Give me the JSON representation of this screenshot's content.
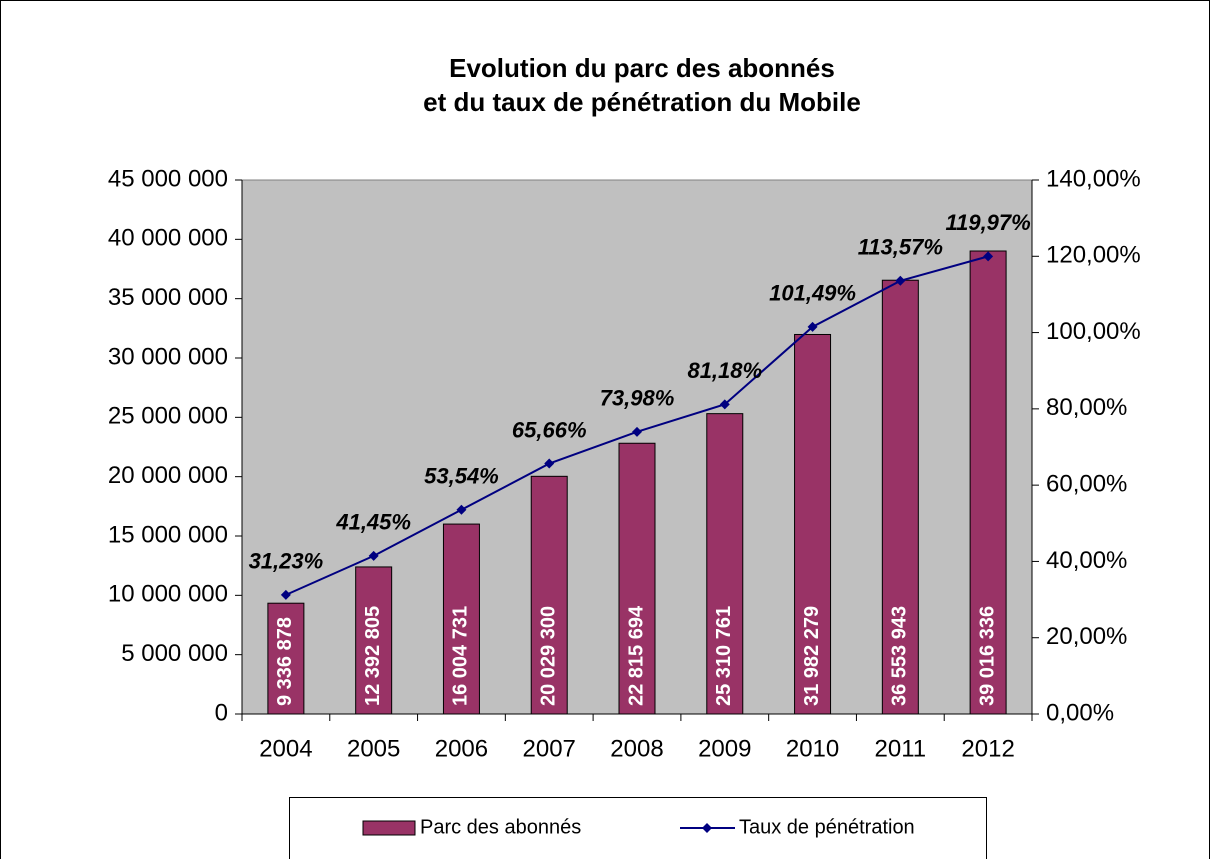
{
  "chart_data": {
    "type": "combo",
    "title": [
      "Evolution du parc des abonnés",
      "et du taux de pénétration du Mobile"
    ],
    "categories": [
      "2004",
      "2005",
      "2006",
      "2007",
      "2008",
      "2009",
      "2010",
      "2011",
      "2012"
    ],
    "series": [
      {
        "name": "Parc des abonnés",
        "type": "bar",
        "color": "#993366",
        "values": [
          9336878,
          12392805,
          16004731,
          20029300,
          22815694,
          25310761,
          31982279,
          36553943,
          39016336
        ],
        "value_labels": [
          "9 336 878",
          "12 392 805",
          "16 004 731",
          "20 029 300",
          "22 815 694",
          "25 310 761",
          "31 982 279",
          "36 553 943",
          "39 016 336"
        ]
      },
      {
        "name": "Taux de pénétration",
        "type": "line",
        "color": "#000080",
        "axis": "y2",
        "values": [
          31.23,
          41.45,
          53.54,
          65.66,
          73.98,
          81.18,
          101.49,
          113.57,
          119.97
        ],
        "value_labels": [
          "31,23%",
          "41,45%",
          "53,54%",
          "65,66%",
          "73,98%",
          "81,18%",
          "101,49%",
          "113,57%",
          "119,97%"
        ]
      }
    ],
    "ylim": [
      0,
      45000000
    ],
    "yticks": [
      0,
      {
        "value": 5000000,
        "label": "5 000 000"
      },
      {
        "value": 10000000,
        "label": "10 000 000"
      },
      {
        "value": 15000000,
        "label": "15 000 000"
      },
      {
        "value": 20000000,
        "label": "20 000 000"
      },
      {
        "value": 25000000,
        "label": "25 000 000"
      },
      {
        "value": 30000000,
        "label": "30 000 000"
      },
      {
        "value": 35000000,
        "label": "35 000 000"
      },
      {
        "value": 40000000,
        "label": "40 000 000"
      },
      {
        "value": 45000000,
        "label": "45 000 000"
      }
    ],
    "y2lim": [
      0,
      140
    ],
    "y2ticks": [
      {
        "value": 0,
        "label": "0,00%"
      },
      {
        "value": 20,
        "label": "20,00%"
      },
      {
        "value": 40,
        "label": "40,00%"
      },
      {
        "value": 60,
        "label": "60,00%"
      },
      {
        "value": 80,
        "label": "80,00%"
      },
      {
        "value": 100,
        "label": "100,00%"
      },
      {
        "value": 120,
        "label": "120,00%"
      },
      {
        "value": 140,
        "label": "140,00%"
      }
    ],
    "plot_background": "#c0c0c0",
    "legend": "bottom"
  }
}
